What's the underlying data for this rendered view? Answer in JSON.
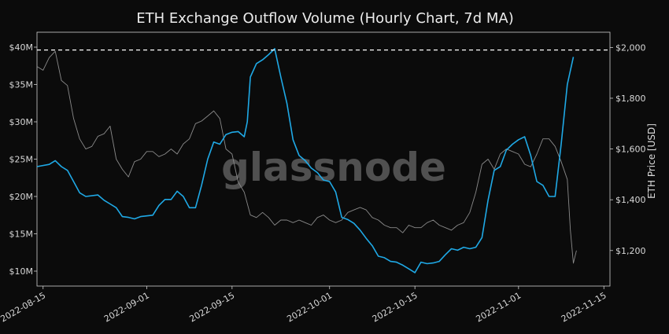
{
  "chart_data": {
    "type": "line",
    "title": "ETH Exchange Outflow Volume (Hourly Chart, 7d MA)",
    "watermark": "glassnode",
    "ylabel_right": "ETH Price [USD]",
    "ylim_left": [
      8000000,
      42000000
    ],
    "ylim_right": [
      1060,
      2060
    ],
    "xlim": [
      "2022-08-14",
      "2022-11-16"
    ],
    "x_ticks": [
      "2022-08-15",
      "2022-09-01",
      "2022-09-15",
      "2022-10-01",
      "2022-10-15",
      "2022-11-01",
      "2022-11-15"
    ],
    "y_left_ticks": [
      {
        "value": 10000000,
        "label": "$10M"
      },
      {
        "value": 15000000,
        "label": "$15M"
      },
      {
        "value": 20000000,
        "label": "$20M"
      },
      {
        "value": 25000000,
        "label": "$25M"
      },
      {
        "value": 30000000,
        "label": "$30M"
      },
      {
        "value": 35000000,
        "label": "$35M"
      },
      {
        "value": 40000000,
        "label": "$40M"
      }
    ],
    "y_right_ticks": [
      {
        "value": 1200,
        "label": "$1,200"
      },
      {
        "value": 1400,
        "label": "$1,400"
      },
      {
        "value": 1600,
        "label": "$1,600"
      },
      {
        "value": 1800,
        "label": "$1,800"
      },
      {
        "value": 2000,
        "label": "$2,000"
      }
    ],
    "reference_line": {
      "axis": "right",
      "value": 1990
    },
    "grid": false,
    "colors": {
      "outflow": "#1fa9e6",
      "price": "#8a8a8a",
      "reference": "#ffffff"
    },
    "series": [
      {
        "axis": "left",
        "points": [
          [
            "2022-08-14",
            24000000
          ],
          [
            "2022-08-16",
            24300000
          ],
          [
            "2022-08-17",
            24800000
          ],
          [
            "2022-08-18",
            24000000
          ],
          [
            "2022-08-19",
            23500000
          ],
          [
            "2022-08-20",
            22000000
          ],
          [
            "2022-08-21",
            20500000
          ],
          [
            "2022-08-22",
            20000000
          ],
          [
            "2022-08-24",
            20200000
          ],
          [
            "2022-08-25",
            19500000
          ],
          [
            "2022-08-26",
            19000000
          ],
          [
            "2022-08-27",
            18500000
          ],
          [
            "2022-08-28",
            17300000
          ],
          [
            "2022-08-29",
            17200000
          ],
          [
            "2022-08-30",
            17000000
          ],
          [
            "2022-08-31",
            17300000
          ],
          [
            "2022-09-02",
            17500000
          ],
          [
            "2022-09-03",
            18800000
          ],
          [
            "2022-09-04",
            19600000
          ],
          [
            "2022-09-05",
            19600000
          ],
          [
            "2022-09-06",
            20700000
          ],
          [
            "2022-09-07",
            20000000
          ],
          [
            "2022-09-08",
            18500000
          ],
          [
            "2022-09-09",
            18500000
          ],
          [
            "2022-09-10",
            21500000
          ],
          [
            "2022-09-11",
            25000000
          ],
          [
            "2022-09-12",
            27300000
          ],
          [
            "2022-09-13",
            27000000
          ],
          [
            "2022-09-14",
            28300000
          ],
          [
            "2022-09-15",
            28600000
          ],
          [
            "2022-09-16",
            28700000
          ],
          [
            "2022-09-17",
            28000000
          ],
          [
            "2022-09-17T12:00",
            30000000
          ],
          [
            "2022-09-18",
            36000000
          ],
          [
            "2022-09-19",
            37800000
          ],
          [
            "2022-09-20",
            38300000
          ],
          [
            "2022-09-21",
            39000000
          ],
          [
            "2022-09-22",
            39800000
          ],
          [
            "2022-09-23",
            36000000
          ],
          [
            "2022-09-24",
            32500000
          ],
          [
            "2022-09-25",
            27600000
          ],
          [
            "2022-09-26",
            25500000
          ],
          [
            "2022-09-27",
            24800000
          ],
          [
            "2022-09-28",
            23800000
          ],
          [
            "2022-09-29",
            23200000
          ],
          [
            "2022-09-30",
            22200000
          ],
          [
            "2022-10-01",
            22000000
          ],
          [
            "2022-10-02",
            20600000
          ],
          [
            "2022-10-03",
            17200000
          ],
          [
            "2022-10-04",
            16900000
          ],
          [
            "2022-10-05",
            16400000
          ],
          [
            "2022-10-06",
            15500000
          ],
          [
            "2022-10-07",
            14400000
          ],
          [
            "2022-10-08",
            13400000
          ],
          [
            "2022-10-09",
            12000000
          ],
          [
            "2022-10-10",
            11800000
          ],
          [
            "2022-10-11",
            11300000
          ],
          [
            "2022-10-12",
            11200000
          ],
          [
            "2022-10-13",
            10800000
          ],
          [
            "2022-10-14",
            10300000
          ],
          [
            "2022-10-15",
            9800000
          ],
          [
            "2022-10-16",
            11200000
          ],
          [
            "2022-10-17",
            11000000
          ],
          [
            "2022-10-18",
            11100000
          ],
          [
            "2022-10-19",
            11300000
          ],
          [
            "2022-10-20",
            12200000
          ],
          [
            "2022-10-21",
            13000000
          ],
          [
            "2022-10-22",
            12800000
          ],
          [
            "2022-10-23",
            13200000
          ],
          [
            "2022-10-24",
            13000000
          ],
          [
            "2022-10-25",
            13200000
          ],
          [
            "2022-10-26",
            14500000
          ],
          [
            "2022-10-27",
            19500000
          ],
          [
            "2022-10-28",
            23500000
          ],
          [
            "2022-10-29",
            24000000
          ],
          [
            "2022-10-30",
            26200000
          ],
          [
            "2022-10-31",
            27000000
          ],
          [
            "2022-11-01",
            27600000
          ],
          [
            "2022-11-02",
            28000000
          ],
          [
            "2022-11-03",
            25500000
          ],
          [
            "2022-11-04",
            22000000
          ],
          [
            "2022-11-05",
            21500000
          ],
          [
            "2022-11-06",
            20000000
          ],
          [
            "2022-11-07",
            20000000
          ],
          [
            "2022-11-08",
            27000000
          ],
          [
            "2022-11-09",
            35000000
          ],
          [
            "2022-11-10",
            38700000
          ]
        ]
      },
      {
        "axis": "right",
        "points": [
          [
            "2022-08-14",
            1925
          ],
          [
            "2022-08-15",
            1910
          ],
          [
            "2022-08-16",
            1960
          ],
          [
            "2022-08-17",
            1985
          ],
          [
            "2022-08-18",
            1870
          ],
          [
            "2022-08-19",
            1850
          ],
          [
            "2022-08-20",
            1720
          ],
          [
            "2022-08-21",
            1640
          ],
          [
            "2022-08-22",
            1600
          ],
          [
            "2022-08-23",
            1610
          ],
          [
            "2022-08-24",
            1650
          ],
          [
            "2022-08-25",
            1660
          ],
          [
            "2022-08-26",
            1690
          ],
          [
            "2022-08-27",
            1560
          ],
          [
            "2022-08-28",
            1520
          ],
          [
            "2022-08-29",
            1490
          ],
          [
            "2022-08-30",
            1550
          ],
          [
            "2022-08-31",
            1560
          ],
          [
            "2022-09-01",
            1590
          ],
          [
            "2022-09-02",
            1590
          ],
          [
            "2022-09-03",
            1570
          ],
          [
            "2022-09-04",
            1580
          ],
          [
            "2022-09-05",
            1600
          ],
          [
            "2022-09-06",
            1580
          ],
          [
            "2022-09-07",
            1620
          ],
          [
            "2022-09-08",
            1640
          ],
          [
            "2022-09-09",
            1700
          ],
          [
            "2022-09-10",
            1710
          ],
          [
            "2022-09-11",
            1730
          ],
          [
            "2022-09-12",
            1750
          ],
          [
            "2022-09-13",
            1720
          ],
          [
            "2022-09-14",
            1600
          ],
          [
            "2022-09-15",
            1580
          ],
          [
            "2022-09-16",
            1470
          ],
          [
            "2022-09-17",
            1430
          ],
          [
            "2022-09-18",
            1340
          ],
          [
            "2022-09-19",
            1330
          ],
          [
            "2022-09-20",
            1350
          ],
          [
            "2022-09-21",
            1330
          ],
          [
            "2022-09-22",
            1300
          ],
          [
            "2022-09-23",
            1320
          ],
          [
            "2022-09-24",
            1320
          ],
          [
            "2022-09-25",
            1310
          ],
          [
            "2022-09-26",
            1320
          ],
          [
            "2022-09-27",
            1310
          ],
          [
            "2022-09-28",
            1300
          ],
          [
            "2022-09-29",
            1330
          ],
          [
            "2022-09-30",
            1340
          ],
          [
            "2022-10-01",
            1320
          ],
          [
            "2022-10-02",
            1310
          ],
          [
            "2022-10-03",
            1320
          ],
          [
            "2022-10-04",
            1350
          ],
          [
            "2022-10-05",
            1360
          ],
          [
            "2022-10-06",
            1370
          ],
          [
            "2022-10-07",
            1360
          ],
          [
            "2022-10-08",
            1330
          ],
          [
            "2022-10-09",
            1320
          ],
          [
            "2022-10-10",
            1300
          ],
          [
            "2022-10-11",
            1290
          ],
          [
            "2022-10-12",
            1290
          ],
          [
            "2022-10-13",
            1270
          ],
          [
            "2022-10-14",
            1300
          ],
          [
            "2022-10-15",
            1290
          ],
          [
            "2022-10-16",
            1290
          ],
          [
            "2022-10-17",
            1310
          ],
          [
            "2022-10-18",
            1320
          ],
          [
            "2022-10-19",
            1300
          ],
          [
            "2022-10-20",
            1290
          ],
          [
            "2022-10-21",
            1280
          ],
          [
            "2022-10-22",
            1300
          ],
          [
            "2022-10-23",
            1310
          ],
          [
            "2022-10-24",
            1350
          ],
          [
            "2022-10-25",
            1430
          ],
          [
            "2022-10-26",
            1540
          ],
          [
            "2022-10-27",
            1560
          ],
          [
            "2022-10-28",
            1520
          ],
          [
            "2022-10-29",
            1580
          ],
          [
            "2022-10-30",
            1600
          ],
          [
            "2022-10-31",
            1590
          ],
          [
            "2022-11-01",
            1580
          ],
          [
            "2022-11-02",
            1540
          ],
          [
            "2022-11-03",
            1530
          ],
          [
            "2022-11-04",
            1580
          ],
          [
            "2022-11-05",
            1640
          ],
          [
            "2022-11-06",
            1640
          ],
          [
            "2022-11-07",
            1610
          ],
          [
            "2022-11-08",
            1550
          ],
          [
            "2022-11-09",
            1480
          ],
          [
            "2022-11-09T12:00",
            1280
          ],
          [
            "2022-11-10",
            1150
          ],
          [
            "2022-11-10T12:00",
            1200
          ]
        ]
      }
    ]
  }
}
